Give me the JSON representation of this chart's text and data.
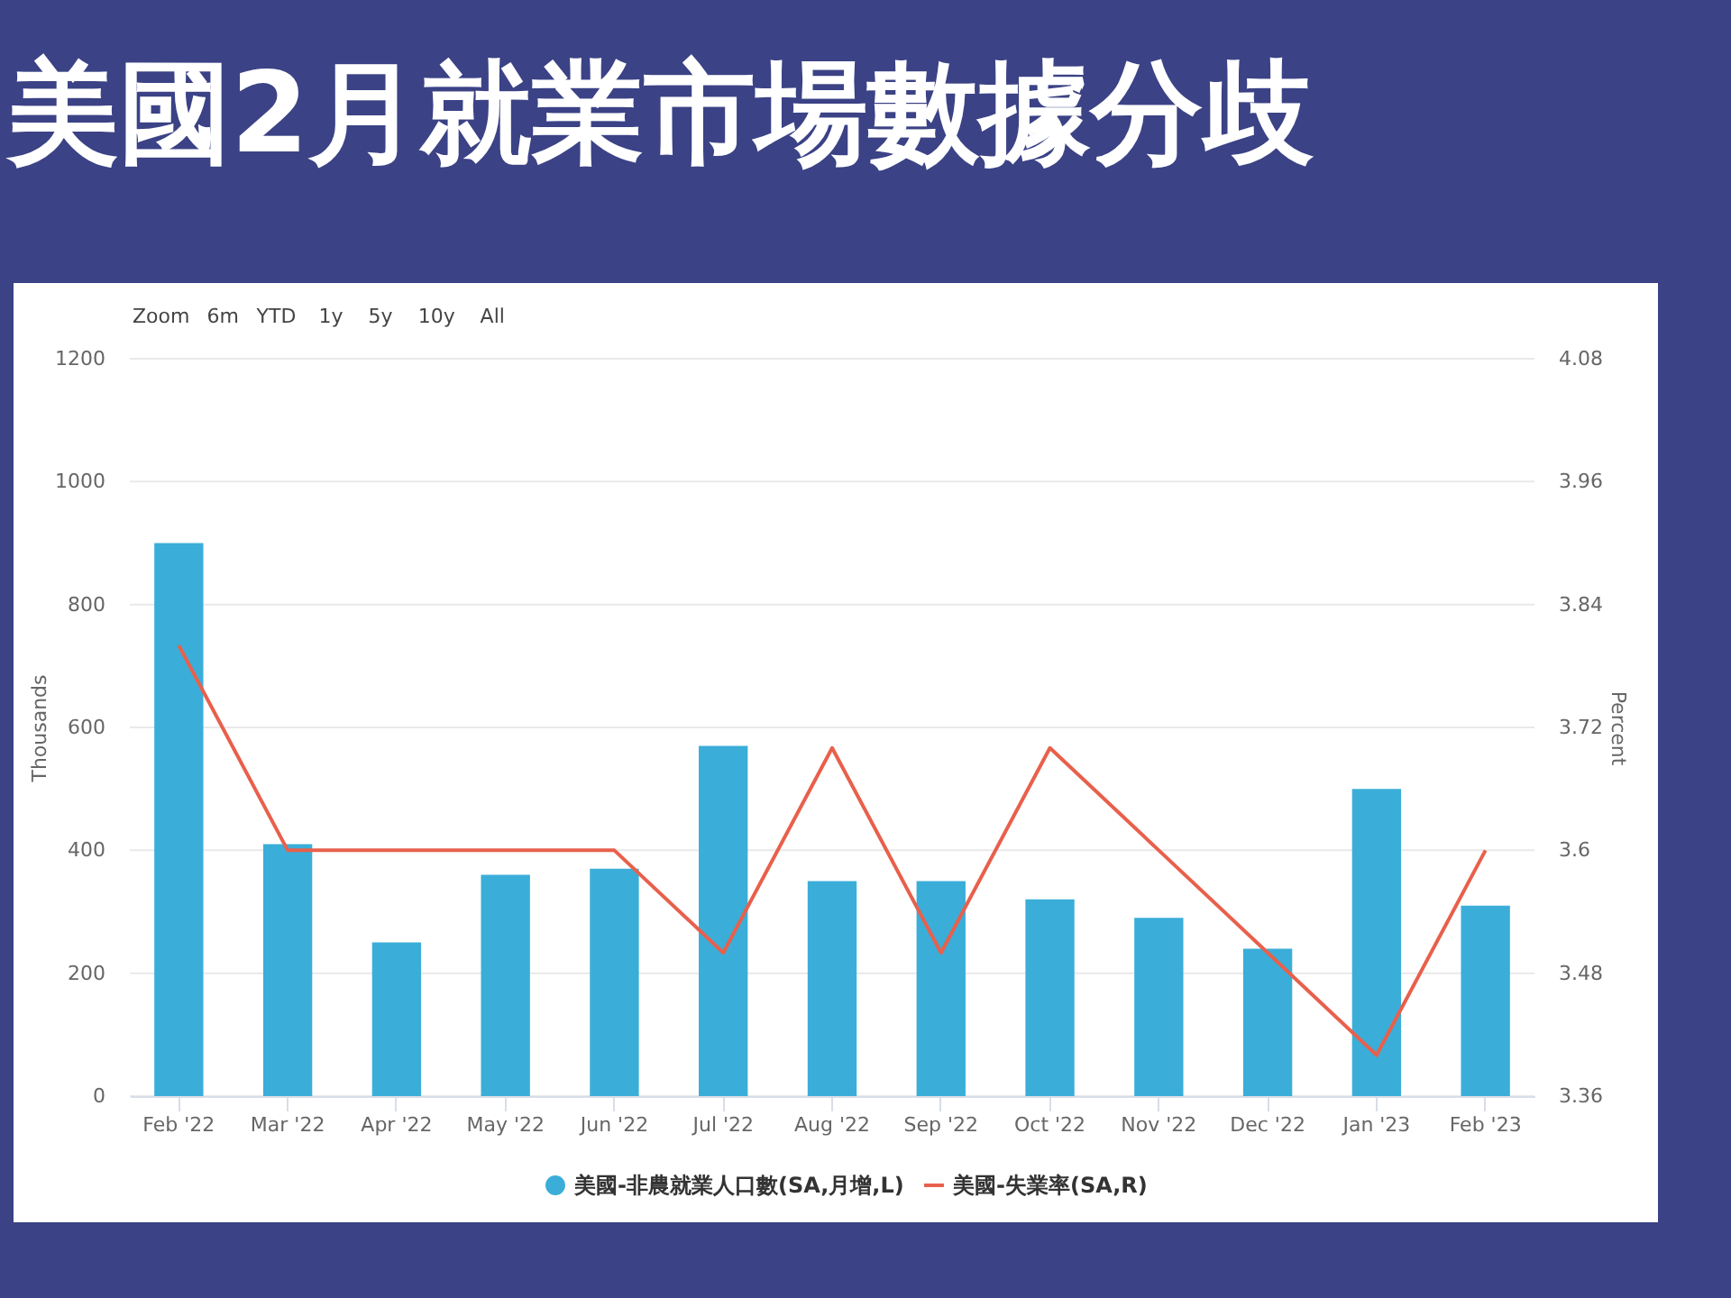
{
  "chart_data": {
    "type": "bar",
    "title": "美國2月就業市場數據分歧",
    "ylabel": "Thousands",
    "y2label": "Percent",
    "categories": [
      "Feb '22",
      "Mar '22",
      "Apr '22",
      "May '22",
      "Jun '22",
      "Jul '22",
      "Aug '22",
      "Sep '22",
      "Oct '22",
      "Nov '22",
      "Dec '22",
      "Jan '23",
      "Feb '23"
    ],
    "series": [
      {
        "name": "美國-非農就業人口數(SA,月增,L)",
        "color": "#3aaed8",
        "values": [
          900,
          410,
          250,
          360,
          370,
          570,
          350,
          350,
          320,
          290,
          240,
          500,
          310
        ]
      },
      {
        "name": "美國-失業率(SA,R)",
        "type": "line",
        "axis": "y2",
        "color": "#e8604c",
        "values": [
          3.8,
          3.6,
          3.6,
          3.6,
          3.6,
          3.5,
          3.7,
          3.5,
          3.7,
          3.6,
          3.5,
          3.4,
          3.6
        ]
      }
    ],
    "ylim": [
      0,
      1200
    ],
    "yticks": [
      0,
      200,
      400,
      600,
      800,
      1000,
      1200
    ],
    "y2lim": [
      3.36,
      4.08
    ],
    "y2ticks": [
      3.36,
      3.48,
      3.6,
      3.72,
      3.84,
      3.96,
      4.08
    ],
    "grid": "y",
    "legend": "bottom",
    "annotations": [
      "Zoom",
      "6m",
      "YTD",
      "1y",
      "5y",
      "10y",
      "All"
    ]
  }
}
